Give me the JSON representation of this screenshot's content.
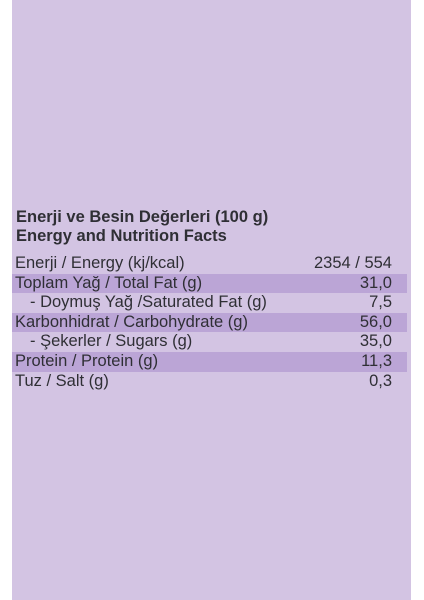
{
  "heading": {
    "line1": "Enerji ve Besin Değerleri (100 g)",
    "line2": "Energy and Nutrition Facts"
  },
  "rows": [
    {
      "label": "Enerji / Energy (kj/kcal)",
      "value": "2354 / 554"
    },
    {
      "label": "Toplam Yağ / Total Fat (g)",
      "value": "31,0"
    },
    {
      "label": "- Doymuş Yağ /Saturated Fat (g)",
      "value": "7,5"
    },
    {
      "label": "Karbonhidrat / Carbohydrate (g)",
      "value": "56,0"
    },
    {
      "label": "- Şekerler / Sugars (g)",
      "value": "35,0"
    },
    {
      "label": "Protein / Protein (g)",
      "value": "11,3"
    },
    {
      "label": "Tuz / Salt (g)",
      "value": "0,3"
    }
  ],
  "colors": {
    "background": "#d3c4e3",
    "row_highlight": "#bba5d6",
    "text": "#2f2f35"
  }
}
